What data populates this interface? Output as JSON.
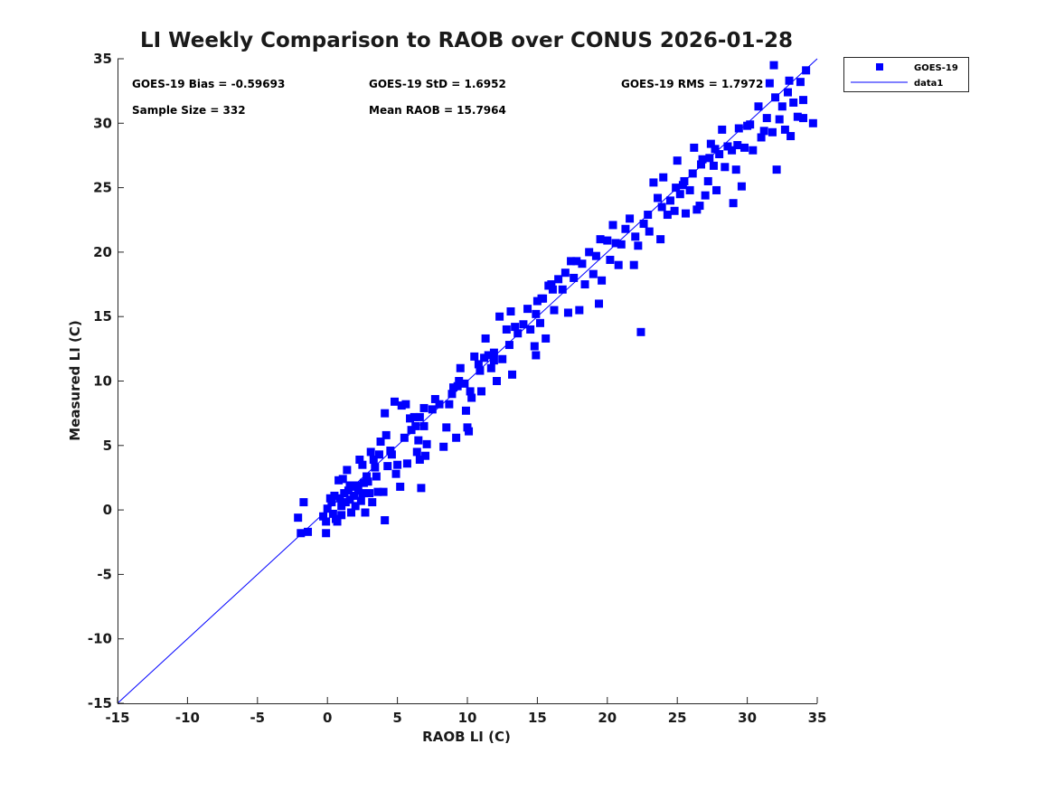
{
  "chart_data": {
    "type": "scatter",
    "title": "LI Weekly Comparison to RAOB over CONUS 2026-01-28",
    "xlabel": "RAOB LI (C)",
    "ylabel": "Measured LI (C)",
    "xlim": [
      -15,
      35
    ],
    "ylim": [
      -15,
      35
    ],
    "xticks": [
      "-15",
      "-10",
      "-5",
      "0",
      "5",
      "10",
      "15",
      "20",
      "25",
      "30",
      "35"
    ],
    "yticks": [
      "-15",
      "-10",
      "-5",
      "0",
      "5",
      "10",
      "15",
      "20",
      "25",
      "30",
      "35"
    ],
    "grid": false,
    "legend_position": "outside-top-right",
    "stats": {
      "bias": "GOES-19 Bias = -0.59693",
      "std": "GOES-19 StD = 1.6952",
      "rms": "GOES-19 RMS = 1.7972",
      "sample_size": "Sample Size = 332",
      "mean_raob": "Mean RAOB = 15.7964"
    },
    "series": [
      {
        "name": "GOES-19",
        "marker": "square",
        "color": "#0000ff",
        "points": [
          [
            -2.1,
            -0.6
          ],
          [
            -1.7,
            0.6
          ],
          [
            -1.9,
            -1.8
          ],
          [
            -1.4,
            -1.7
          ],
          [
            -0.3,
            -0.5
          ],
          [
            -0.1,
            -0.9
          ],
          [
            0,
            0.1
          ],
          [
            -0.1,
            -1.8
          ],
          [
            0.3,
            0.6
          ],
          [
            0.4,
            -0.3
          ],
          [
            0.5,
            1.1
          ],
          [
            0.6,
            -0.7
          ],
          [
            0.7,
            -0.9
          ],
          [
            0.8,
            2.3
          ],
          [
            0.9,
            0.9
          ],
          [
            1,
            -0.4
          ],
          [
            1.1,
            2.4
          ],
          [
            1.2,
            1.3
          ],
          [
            1.3,
            0.6
          ],
          [
            1.4,
            3.1
          ],
          [
            1.5,
            1.5
          ],
          [
            1.6,
            0.8
          ],
          [
            1.7,
            -0.2
          ],
          [
            1.8,
            1.8
          ],
          [
            1.9,
            1.1
          ],
          [
            2,
            0.3
          ],
          [
            2.1,
            1.9
          ],
          [
            2.3,
            3.9
          ],
          [
            2.4,
            0.7
          ],
          [
            2.5,
            3.5
          ],
          [
            2.6,
            2.1
          ],
          [
            2.7,
            -0.2
          ],
          [
            2.8,
            2.6
          ],
          [
            3,
            1.3
          ],
          [
            3.1,
            4.5
          ],
          [
            3.2,
            0.6
          ],
          [
            3.3,
            3.9
          ],
          [
            3.5,
            2.6
          ],
          [
            3.6,
            1.4
          ],
          [
            3.7,
            4.3
          ],
          [
            3.8,
            5.3
          ],
          [
            4,
            1.4
          ],
          [
            4.1,
            7.5
          ],
          [
            4.1,
            -0.8
          ],
          [
            4.2,
            5.8
          ],
          [
            4.3,
            3.4
          ],
          [
            4.6,
            4.3
          ],
          [
            4.8,
            8.4
          ],
          [
            4.9,
            2.8
          ],
          [
            5,
            3.5
          ],
          [
            5.2,
            1.8
          ],
          [
            5.3,
            8.1
          ],
          [
            5.5,
            5.6
          ],
          [
            5.6,
            8.2
          ],
          [
            5.7,
            3.6
          ],
          [
            6,
            6.2
          ],
          [
            6.2,
            7.2
          ],
          [
            6.4,
            4.5
          ],
          [
            6.5,
            5.4
          ],
          [
            6.6,
            3.9
          ],
          [
            6.7,
            1.7
          ],
          [
            6.9,
            7.9
          ],
          [
            7,
            4.2
          ],
          [
            7.1,
            5.1
          ],
          [
            6.6,
            7.2
          ],
          [
            6.3,
            6.5
          ],
          [
            5.9,
            7.1
          ],
          [
            2.2,
            1.5
          ],
          [
            2.9,
            2.2
          ],
          [
            1.0,
            0.3
          ],
          [
            0.2,
            0.9
          ],
          [
            1.6,
            1.9
          ],
          [
            3.4,
            3.3
          ],
          [
            2.5,
            1.3
          ],
          [
            4.5,
            4.6
          ],
          [
            7.5,
            7.8
          ],
          [
            7.7,
            8.6
          ],
          [
            8,
            8.2
          ],
          [
            8.3,
            4.9
          ],
          [
            8.5,
            6.4
          ],
          [
            8.7,
            8.2
          ],
          [
            9,
            9.5
          ],
          [
            9.2,
            5.6
          ],
          [
            9.4,
            10
          ],
          [
            9.5,
            11
          ],
          [
            9.8,
            9.8
          ],
          [
            9.9,
            7.7
          ],
          [
            10,
            6.4
          ],
          [
            10.1,
            6.1
          ],
          [
            10.2,
            9.2
          ],
          [
            10.3,
            8.7
          ],
          [
            10.5,
            11.9
          ],
          [
            10.8,
            11.3
          ],
          [
            11,
            9.2
          ],
          [
            11.2,
            11.8
          ],
          [
            11.3,
            13.3
          ],
          [
            11.5,
            12
          ],
          [
            11.7,
            11
          ],
          [
            11.9,
            12.2
          ],
          [
            12.1,
            10
          ],
          [
            12.3,
            15
          ],
          [
            12.5,
            11.7
          ],
          [
            13,
            12.8
          ],
          [
            13.1,
            15.4
          ],
          [
            13.2,
            10.5
          ],
          [
            13.4,
            14.2
          ],
          [
            13.6,
            13.7
          ],
          [
            14,
            14.4
          ],
          [
            14.3,
            15.6
          ],
          [
            14.5,
            14
          ],
          [
            14.8,
            12.7
          ],
          [
            14.9,
            12
          ],
          [
            15,
            16.2
          ],
          [
            15.2,
            14.5
          ],
          [
            15.4,
            16.4
          ],
          [
            15.6,
            13.3
          ],
          [
            15.8,
            17.4
          ],
          [
            16,
            17.5
          ],
          [
            16.2,
            15.5
          ],
          [
            16.5,
            17.9
          ],
          [
            16.8,
            17.1
          ],
          [
            17,
            18.4
          ],
          [
            17.2,
            15.3
          ],
          [
            17.4,
            19.3
          ],
          [
            17.6,
            18
          ],
          [
            17.8,
            19.3
          ],
          [
            18,
            15.5
          ],
          [
            18.2,
            19.1
          ],
          [
            18.4,
            17.5
          ],
          [
            18.7,
            20
          ],
          [
            19,
            18.3
          ],
          [
            19.2,
            19.7
          ],
          [
            19.4,
            16
          ],
          [
            19.6,
            17.8
          ],
          [
            19.5,
            21
          ],
          [
            14.9,
            15.2
          ],
          [
            15.3,
            16.4
          ],
          [
            16.1,
            17.1
          ],
          [
            12.8,
            14
          ],
          [
            11.9,
            11.6
          ],
          [
            10.9,
            10.8
          ],
          [
            8.9,
            9
          ],
          [
            9.3,
            9.6
          ],
          [
            6.9,
            6.5
          ],
          [
            20,
            20.9
          ],
          [
            20.2,
            19.4
          ],
          [
            20.4,
            22.1
          ],
          [
            20.6,
            20.7
          ],
          [
            20.8,
            19
          ],
          [
            21,
            20.6
          ],
          [
            21.3,
            21.8
          ],
          [
            21.6,
            22.6
          ],
          [
            21.9,
            19
          ],
          [
            22,
            21.2
          ],
          [
            22.2,
            20.5
          ],
          [
            22.4,
            13.8
          ],
          [
            22.6,
            22.2
          ],
          [
            23,
            21.6
          ],
          [
            23.3,
            25.4
          ],
          [
            23.6,
            24.2
          ],
          [
            23.8,
            21
          ],
          [
            24,
            25.8
          ],
          [
            24.3,
            22.9
          ],
          [
            24.5,
            24
          ],
          [
            24.8,
            23.2
          ],
          [
            25,
            27.1
          ],
          [
            25.2,
            24.5
          ],
          [
            25.4,
            25.2
          ],
          [
            25.6,
            23
          ],
          [
            25.9,
            24.8
          ],
          [
            26.2,
            28.1
          ],
          [
            26.4,
            23.3
          ],
          [
            26.6,
            23.6
          ],
          [
            26.8,
            27.2
          ],
          [
            27,
            24.4
          ],
          [
            27.2,
            25.5
          ],
          [
            27.4,
            28.4
          ],
          [
            27.6,
            26.7
          ],
          [
            27.8,
            24.8
          ],
          [
            28,
            27.6
          ],
          [
            28.2,
            29.5
          ],
          [
            28.4,
            26.6
          ],
          [
            28.6,
            28.2
          ],
          [
            29,
            23.8
          ],
          [
            29.2,
            26.4
          ],
          [
            29.4,
            29.6
          ],
          [
            29.6,
            25.1
          ],
          [
            29.8,
            28.1
          ],
          [
            30,
            29.8
          ],
          [
            30.4,
            27.9
          ],
          [
            30.8,
            31.3
          ],
          [
            31,
            28.9
          ],
          [
            31.2,
            29.4
          ],
          [
            31.4,
            30.4
          ],
          [
            31.6,
            33.1
          ],
          [
            31.8,
            29.3
          ],
          [
            32,
            32
          ],
          [
            32.1,
            26.4
          ],
          [
            32.3,
            30.3
          ],
          [
            32.5,
            31.3
          ],
          [
            32.7,
            29.5
          ],
          [
            32.9,
            32.4
          ],
          [
            33,
            33.3
          ],
          [
            33.3,
            31.6
          ],
          [
            33.6,
            30.5
          ],
          [
            33.8,
            33.2
          ],
          [
            34,
            31.8
          ],
          [
            34.2,
            34.1
          ],
          [
            34.7,
            30
          ],
          [
            34,
            30.4
          ],
          [
            33.1,
            29
          ],
          [
            31.9,
            34.5
          ],
          [
            28.9,
            27.9
          ],
          [
            27.3,
            27.3
          ],
          [
            26.1,
            26.1
          ],
          [
            24.9,
            25
          ],
          [
            23.9,
            23.5
          ],
          [
            22.9,
            22.9
          ],
          [
            29.3,
            28.3
          ],
          [
            30.2,
            29.9
          ],
          [
            27.7,
            28
          ],
          [
            26.7,
            26.8
          ],
          [
            25.5,
            25.5
          ]
        ]
      },
      {
        "name": "data1",
        "type": "line",
        "color": "#0000ff",
        "points": [
          [
            -15,
            -15
          ],
          [
            35,
            35
          ]
        ]
      }
    ]
  }
}
